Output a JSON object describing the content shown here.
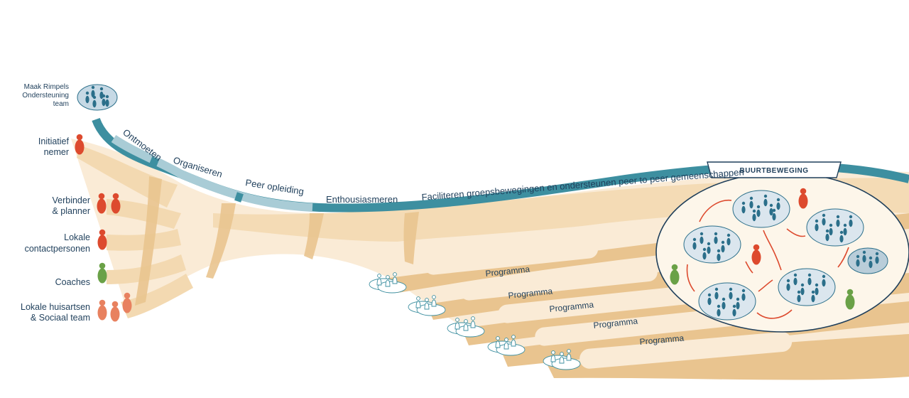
{
  "roles": {
    "team_line1": "Maak Rimpels",
    "team_line2": "Ondersteuning",
    "team_line3": "team",
    "initiator_line1": "Initiatief",
    "initiator_line2": "nemer",
    "connector_line1": "Verbinder",
    "connector_line2": "& planner",
    "contacts_line1": "Lokale",
    "contacts_line2": "contactpersonen",
    "coaches": "Coaches",
    "doctors_line1": "Lokale huisartsen",
    "doctors_line2": "& Sociaal team"
  },
  "phases": {
    "meet": "Ontmoeten",
    "organize": "Organiseren",
    "peer_training": "Peer opleiding",
    "enthuse": "Enthousiasmeren",
    "facilitate": "Faciliteren groepsbewegingen en ondersteunen peer to peer gemeenschappen"
  },
  "programs": [
    "Programma",
    "Programma",
    "Programma",
    "Programma",
    "Programma"
  ],
  "badge": "BUURTBEWEGING",
  "colors": {
    "teal": "#3d8fa0",
    "teal_light": "#a9ccd6",
    "dark_blue": "#1f3f5b",
    "band": "#f3d9b1",
    "band_dark": "#e9c48f",
    "red": "#dd4a2e",
    "green": "#6aa147",
    "salmon": "#e8815f",
    "people_blue": "#2b6f8a"
  }
}
